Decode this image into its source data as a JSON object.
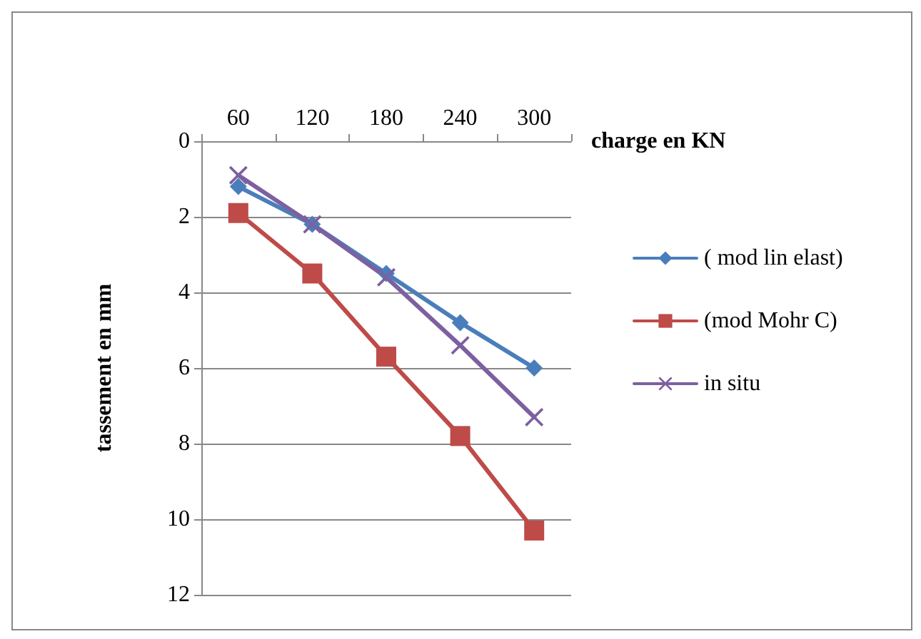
{
  "chart_data": {
    "type": "line",
    "xlabel": "charge en KN",
    "ylabel": "tassement en mm",
    "categories": [
      "60",
      "120",
      "180",
      "240",
      "300"
    ],
    "ylim": [
      12,
      0
    ],
    "yticks": [
      0,
      2,
      4,
      6,
      8,
      10,
      12
    ],
    "grid": "y",
    "legend": "right",
    "line_style": "solid",
    "series": [
      {
        "name": "( mod lin elast)",
        "color": "#4a7ebb",
        "marker": "diamond",
        "values": [
          1.2,
          2.2,
          3.5,
          4.8,
          6.0
        ]
      },
      {
        "name": "(mod Mohr C)",
        "color": "#be4b48",
        "marker": "square",
        "values": [
          1.9,
          3.5,
          5.7,
          7.8,
          10.3
        ]
      },
      {
        "name": "in situ",
        "color": "#7d60a0",
        "marker": "cross",
        "values": [
          0.9,
          2.2,
          3.6,
          5.4,
          7.3
        ]
      }
    ]
  }
}
